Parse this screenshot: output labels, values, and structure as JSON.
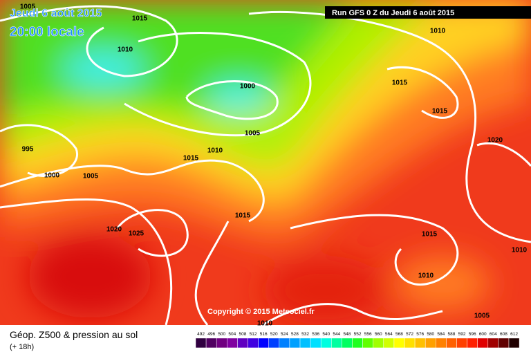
{
  "header": {
    "date": "Jeudi 6 août 2015",
    "time": "20:00 locale",
    "run": "Run GFS 0 Z du Jeudi 6 août 2015"
  },
  "copyright": "Copyright © 2015 Meteociel.fr",
  "isobars": [
    1005,
    1015,
    1010,
    1010,
    1000,
    1015,
    1015,
    1005,
    1010,
    1015,
    1020,
    995,
    1000,
    1005,
    1015,
    1020,
    1025,
    1015,
    1010,
    1010,
    1005,
    1010
  ],
  "legend": {
    "title": "Géop. Z500 & pression au sol",
    "subtitle": "(+ 18h)",
    "values": [
      492,
      496,
      500,
      504,
      508,
      512,
      516,
      520,
      524,
      528,
      532,
      536,
      540,
      544,
      548,
      552,
      556,
      560,
      564,
      568,
      572,
      576,
      580,
      584,
      588,
      592,
      596,
      600,
      604,
      608,
      612
    ],
    "colors": [
      "#300040",
      "#500060",
      "#700080",
      "#8000a0",
      "#6000c0",
      "#4000e0",
      "#0000ff",
      "#0040ff",
      "#0080ff",
      "#00a0ff",
      "#00c0ff",
      "#00e0ff",
      "#00ffe0",
      "#00ffa0",
      "#00ff60",
      "#20ff20",
      "#60ff00",
      "#a0ff00",
      "#d0ff00",
      "#ffff00",
      "#ffe000",
      "#ffc000",
      "#ffa000",
      "#ff8000",
      "#ff6000",
      "#ff4000",
      "#ff2000",
      "#e00000",
      "#a00000",
      "#600000",
      "#200000"
    ]
  }
}
